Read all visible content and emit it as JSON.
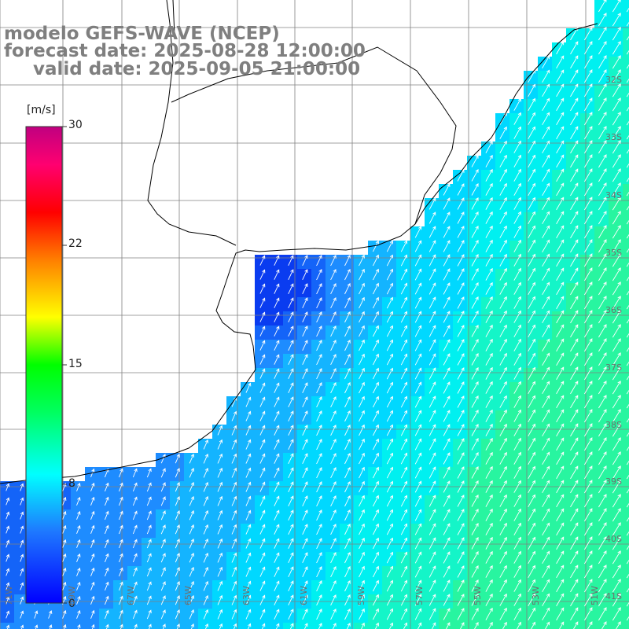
{
  "title": {
    "line1": "modelo GEFS-WAVE (NCEP)",
    "line2": "forecast date: 2025-08-28 12:00:00",
    "line3": "valid date: 2025-09-05 21:00:00"
  },
  "colorbar": {
    "unit": "[m/s]",
    "ticks": [
      "30",
      "22",
      "15",
      "8",
      "0"
    ],
    "colors": [
      "#0000ff",
      "#00bfff",
      "#00ffff",
      "#00ff00",
      "#ffff00",
      "#ff7f00",
      "#ff0000",
      "#ff0080",
      "#cc0080"
    ]
  },
  "map": {
    "variable": "wind speed with direction arrows",
    "ocean_fill_colors": {
      "low": "#0a3cf0",
      "mid": "#1e8cff",
      "high": "#28f5a0"
    },
    "land_color": "#ffffff",
    "coastline_color": "#000000",
    "grid": true,
    "longitude_labels": [
      "71W",
      "69W",
      "67W",
      "65W",
      "63W",
      "61W",
      "59W",
      "57W",
      "55W",
      "53W",
      "51W"
    ],
    "latitude_labels": [
      "32S",
      "33S",
      "34S",
      "35S",
      "36S",
      "37S",
      "38S",
      "39S",
      "40S",
      "41S"
    ]
  }
}
